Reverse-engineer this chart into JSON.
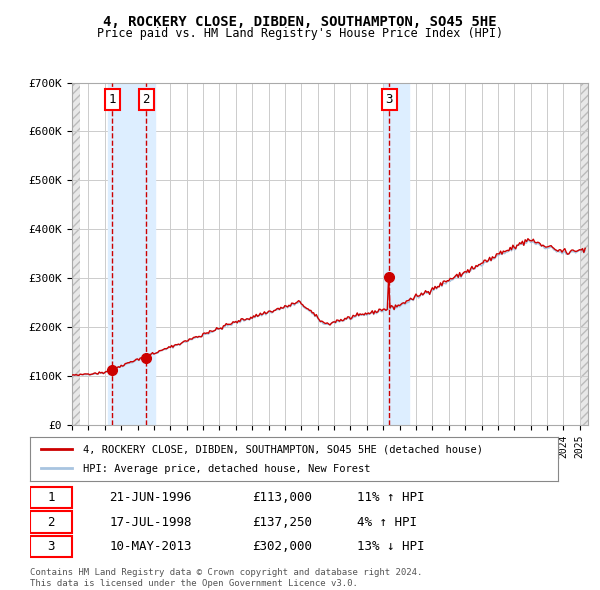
{
  "title": "4, ROCKERY CLOSE, DIBDEN, SOUTHAMPTON, SO45 5HE",
  "subtitle": "Price paid vs. HM Land Registry's House Price Index (HPI)",
  "legend_line1": "4, ROCKERY CLOSE, DIBDEN, SOUTHAMPTON, SO45 5HE (detached house)",
  "legend_line2": "HPI: Average price, detached house, New Forest",
  "footer1": "Contains HM Land Registry data © Crown copyright and database right 2024.",
  "footer2": "This data is licensed under the Open Government Licence v3.0.",
  "sale_dates": [
    "1996-06-21",
    "1998-07-17",
    "2013-05-10"
  ],
  "sale_prices": [
    113000,
    137250,
    302000
  ],
  "sale_labels": [
    "1",
    "2",
    "3"
  ],
  "sale_table": [
    [
      "1",
      "21-JUN-1996",
      "£113,000",
      "11% ↑ HPI"
    ],
    [
      "2",
      "17-JUL-1998",
      "£137,250",
      "4% ↑ HPI"
    ],
    [
      "3",
      "10-MAY-2013",
      "£302,000",
      "13% ↓ HPI"
    ]
  ],
  "hpi_color": "#a8c4e0",
  "price_color": "#cc0000",
  "sale_marker_color": "#cc0000",
  "dashed_line_color": "#cc0000",
  "highlight_color": "#ddeeff",
  "grid_color": "#cccccc",
  "background_color": "#ffffff",
  "hatch_color": "#cccccc",
  "ylim": [
    0,
    700000
  ],
  "yticks": [
    0,
    100000,
    200000,
    300000,
    400000,
    500000,
    600000,
    700000
  ],
  "xlim_start": 1994.0,
  "xlim_end": 2025.5
}
